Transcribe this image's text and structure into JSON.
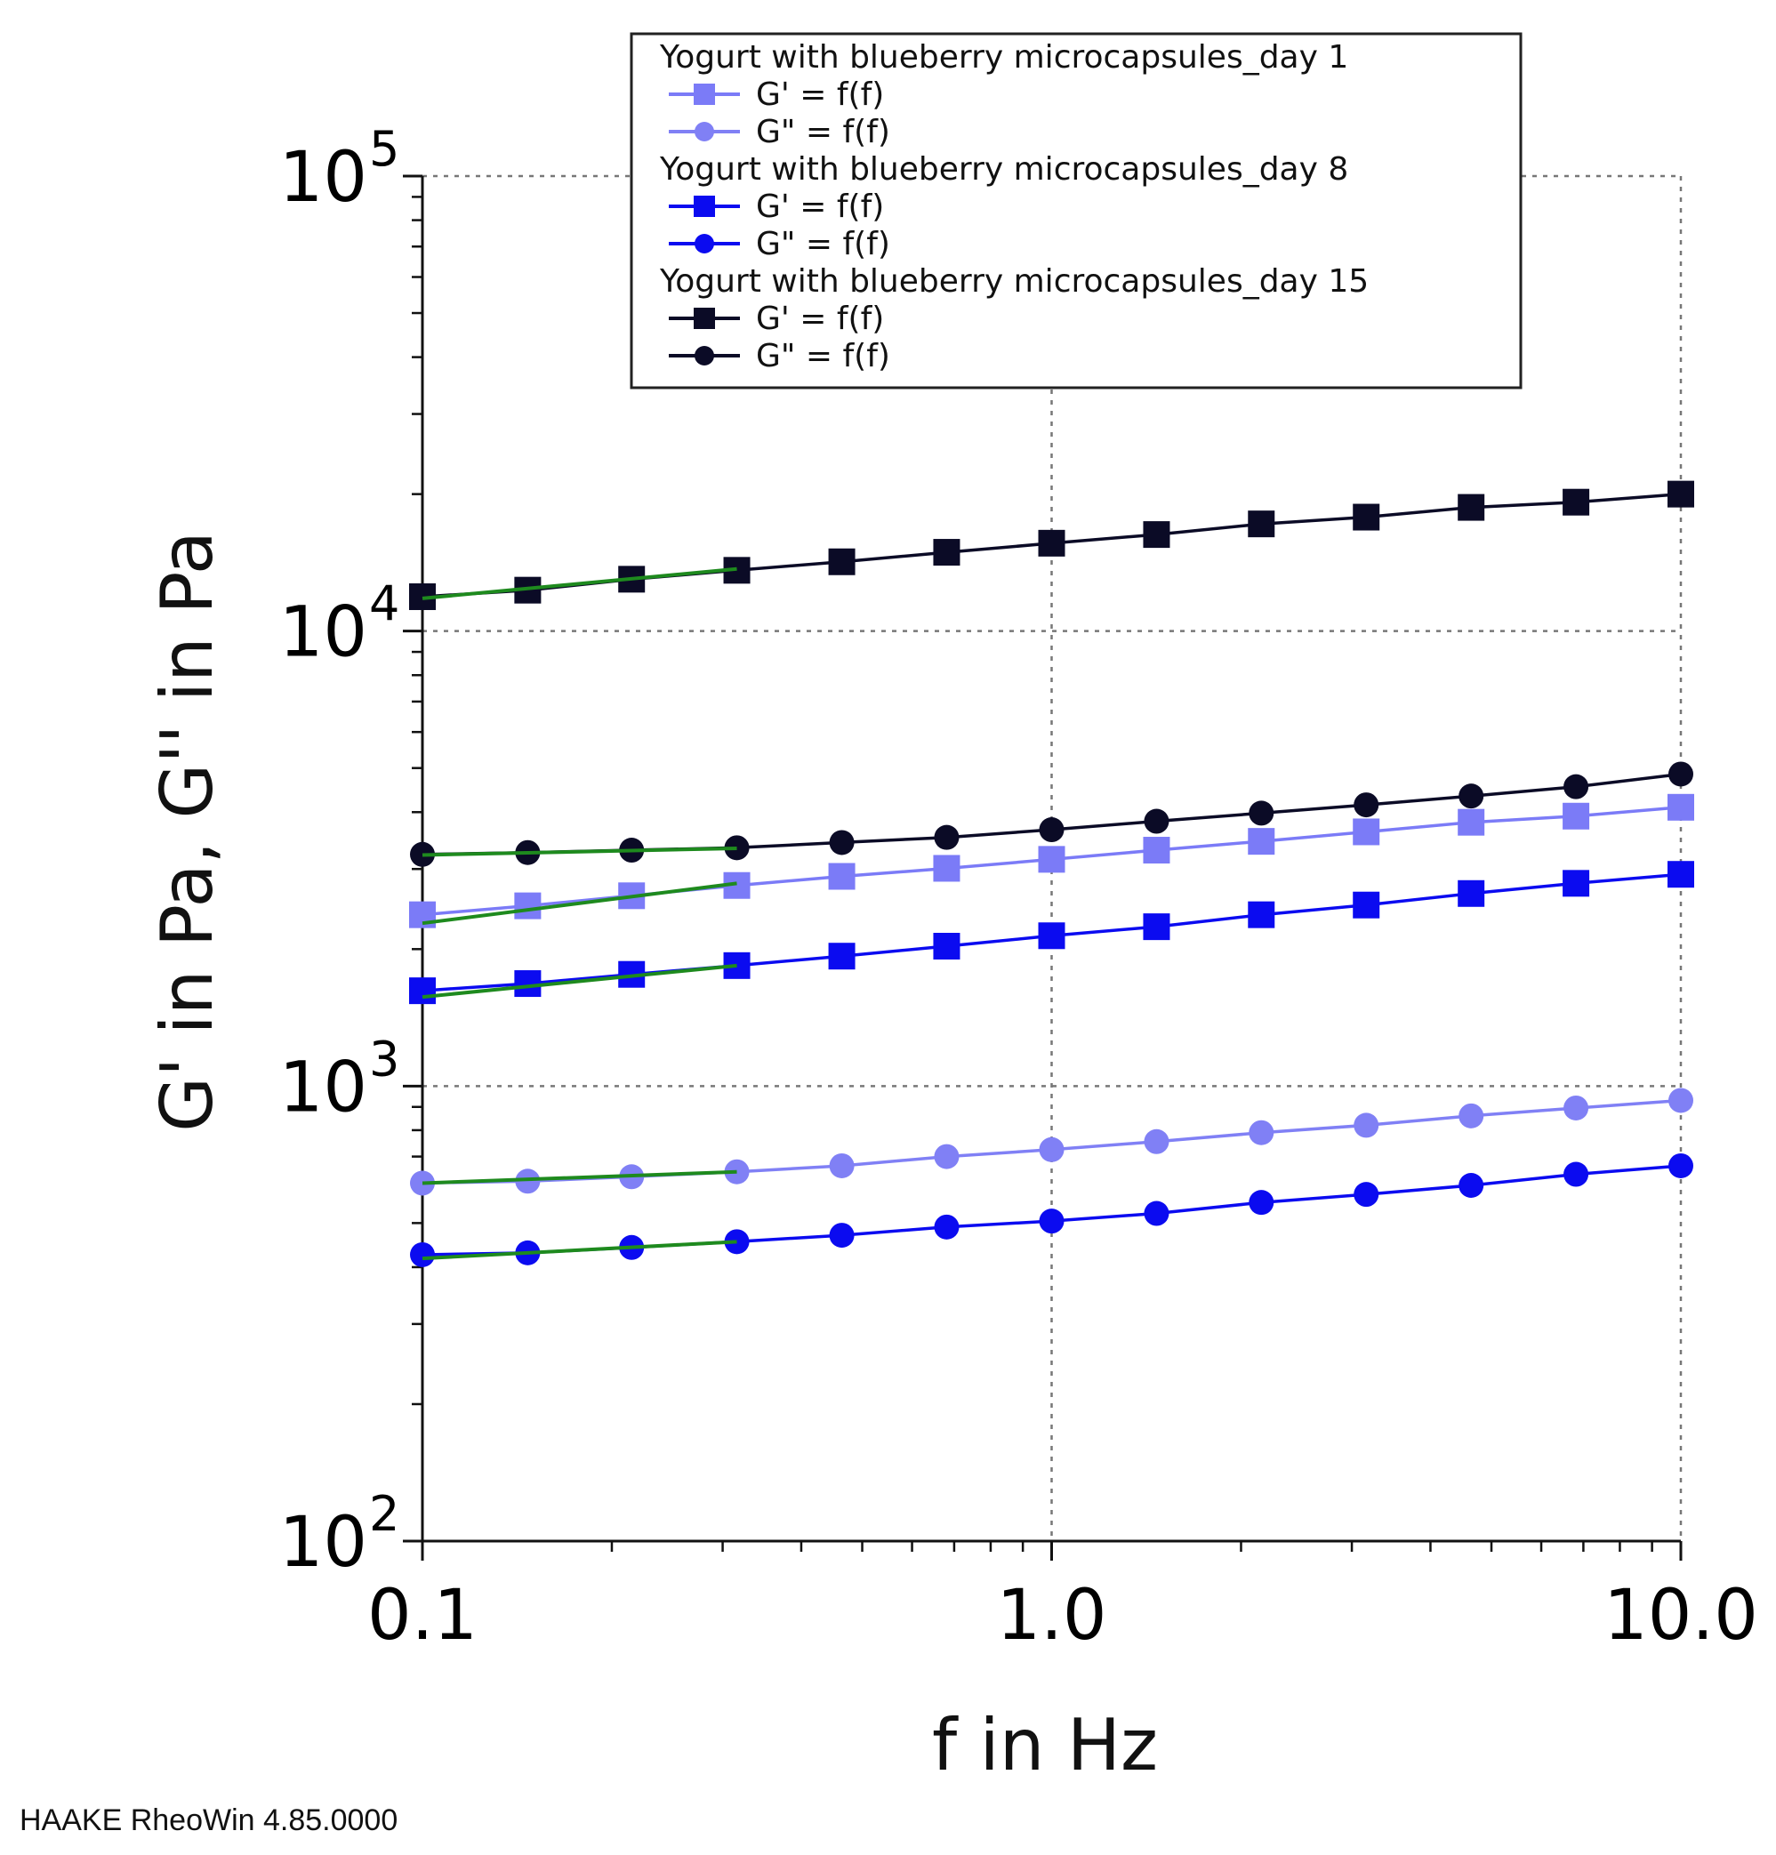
{
  "chart_data": {
    "type": "line",
    "xscale": "log",
    "yscale": "log",
    "xlabel": "f in Hz",
    "ylabel": "G' in Pa, G'' in Pa",
    "xlim": [
      0.1,
      10.0
    ],
    "ylim": [
      100,
      100000
    ],
    "x_ticks": [
      {
        "value": 0.1,
        "label": "0.1"
      },
      {
        "value": 1.0,
        "label": "1.0"
      },
      {
        "value": 10.0,
        "label": "10.0"
      }
    ],
    "y_ticks": [
      {
        "value": 100,
        "base": "10",
        "exp": "2"
      },
      {
        "value": 1000,
        "base": "10",
        "exp": "3"
      },
      {
        "value": 10000,
        "base": "10",
        "exp": "4"
      },
      {
        "value": 100000,
        "base": "10",
        "exp": "5"
      }
    ],
    "grid": true,
    "x": [
      0.1,
      0.147,
      0.215,
      0.316,
      0.464,
      0.681,
      1.0,
      1.468,
      2.154,
      3.162,
      4.642,
      6.813,
      10.0
    ],
    "groups": [
      {
        "title": "Yogurt with blueberry microcapsules_day 1",
        "series": [
          {
            "name": "G' = f(f)",
            "marker": "square",
            "color": "#7b7bf7",
            "values": [
              2380,
              2490,
              2620,
              2760,
              2890,
              3010,
              3150,
              3300,
              3450,
              3620,
              3800,
              3920,
              4100
            ]
          },
          {
            "name": "G\" = f(f)",
            "marker": "circle",
            "color": "#8080f5",
            "values": [
              612,
              618,
              632,
              648,
              668,
              700,
              725,
              755,
              790,
              820,
              860,
              895,
              930
            ]
          }
        ]
      },
      {
        "title": "Yogurt with blueberry microcapsules_day 8",
        "series": [
          {
            "name": "G' = f(f)",
            "marker": "square",
            "color": "#0b0bf0",
            "values": [
              1620,
              1680,
              1760,
              1840,
              1930,
              2030,
              2140,
              2240,
              2380,
              2500,
              2650,
              2790,
              2920
            ]
          },
          {
            "name": "G\" = f(f)",
            "marker": "circle",
            "color": "#0b0bf0",
            "values": [
              426,
              430,
              442,
              455,
              470,
              490,
              505,
              525,
              555,
              578,
              605,
              640,
              668
            ]
          }
        ]
      },
      {
        "title": "Yogurt with blueberry microcapsules_day 15",
        "series": [
          {
            "name": "G' = f(f)",
            "marker": "square",
            "color": "#0b0b26",
            "values": [
              11900,
              12300,
              13000,
              13600,
              14200,
              14900,
              15600,
              16300,
              17200,
              17800,
              18700,
              19200,
              20000
            ]
          },
          {
            "name": "G\" = f(f)",
            "marker": "circle",
            "color": "#0b0b26",
            "values": [
              3230,
              3260,
              3300,
              3340,
              3430,
              3520,
              3660,
              3820,
              3980,
              4150,
              4340,
              4550,
              4850
            ]
          }
        ]
      }
    ],
    "fit_lines": {
      "color": "#1e8a1e",
      "x_range": [
        0.1,
        0.316
      ],
      "lines": [
        {
          "y_start": 11800,
          "y_end": 13700
        },
        {
          "y_start": 3220,
          "y_end": 3330
        },
        {
          "y_start": 2280,
          "y_end": 2790
        },
        {
          "y_start": 1570,
          "y_end": 1840
        },
        {
          "y_start": 612,
          "y_end": 648
        },
        {
          "y_start": 418,
          "y_end": 455
        }
      ]
    }
  },
  "footer": "HAAKE RheoWin 4.85.0000"
}
